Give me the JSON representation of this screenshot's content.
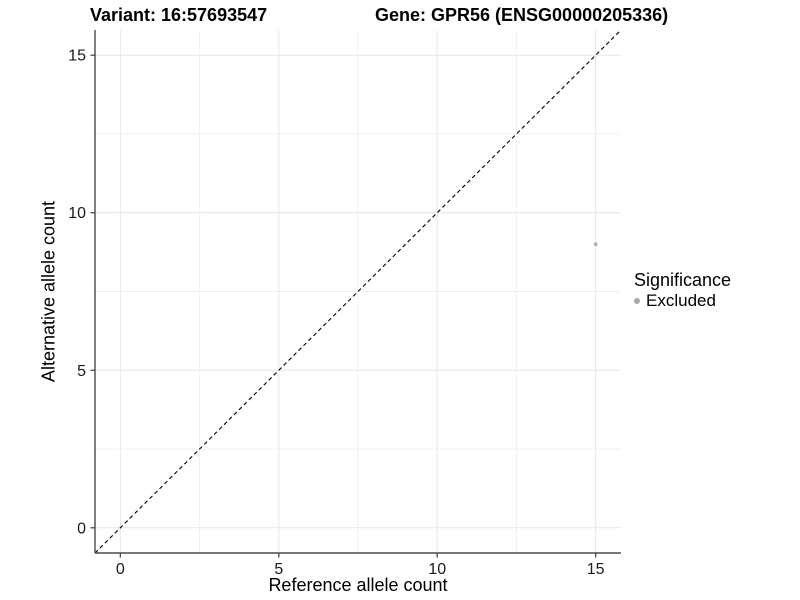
{
  "titles": {
    "variant": "Variant: 16:57693547",
    "gene": "Gene: GPR56 (ENSG00000205336)"
  },
  "chart_data": {
    "type": "scatter",
    "xlabel": "Reference allele count",
    "ylabel": "Alternative allele count",
    "xlim": [
      -0.8,
      15.8
    ],
    "ylim": [
      -0.8,
      15.8
    ],
    "xticks": [
      0,
      5,
      10,
      15
    ],
    "yticks": [
      0,
      5,
      10,
      15
    ],
    "minor_ticks_x": [
      2.5,
      7.5,
      12.5
    ],
    "minor_ticks_y": [
      2.5,
      7.5,
      12.5
    ],
    "grid": true,
    "points": [
      {
        "x": 15,
        "y": 9,
        "series": "Excluded"
      }
    ],
    "reference_line": {
      "kind": "identity",
      "slope": 1,
      "intercept": 0,
      "style": "dashed"
    },
    "legend": {
      "title": "Significance",
      "position": "right",
      "items": [
        {
          "label": "Excluded",
          "color": "#a9a9a9"
        }
      ]
    },
    "colors": {
      "point": "#b0b0b0",
      "legend_key": "#a9a9a9",
      "grid_major": "#e7e7e7",
      "grid_minor": "#f1f1f1",
      "axis": "#4a4a4a",
      "reference_line": "#000000"
    }
  }
}
